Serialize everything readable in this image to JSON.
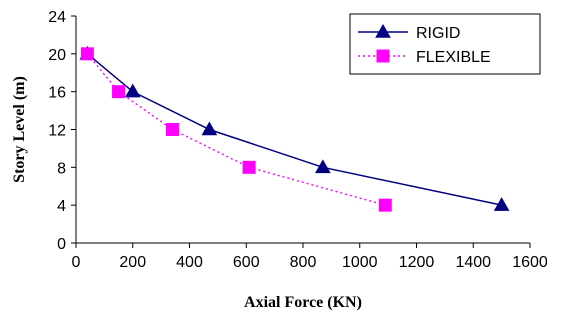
{
  "chart_data": {
    "type": "line",
    "xlabel": "Axial Force (KN)",
    "ylabel": "Story  Level  (m)",
    "xlim": [
      0,
      1600
    ],
    "ylim": [
      0,
      24
    ],
    "xticks": [
      0,
      200,
      400,
      600,
      800,
      1000,
      1200,
      1400,
      1600
    ],
    "yticks": [
      0,
      4,
      8,
      12,
      16,
      20,
      24
    ],
    "grid": false,
    "legend_position": "top-right",
    "series": [
      {
        "name": "RIGID",
        "color": "#000080",
        "marker": "triangle",
        "line_style": "solid",
        "points": [
          [
            40,
            20
          ],
          [
            200,
            16
          ],
          [
            470,
            12
          ],
          [
            870,
            8
          ],
          [
            1500,
            4
          ]
        ]
      },
      {
        "name": "FLEXIBLE",
        "color": "#ff00ff",
        "marker": "square",
        "line_style": "dotted",
        "points": [
          [
            40,
            20
          ],
          [
            150,
            16
          ],
          [
            340,
            12
          ],
          [
            610,
            8
          ],
          [
            1090,
            4
          ]
        ]
      }
    ]
  }
}
